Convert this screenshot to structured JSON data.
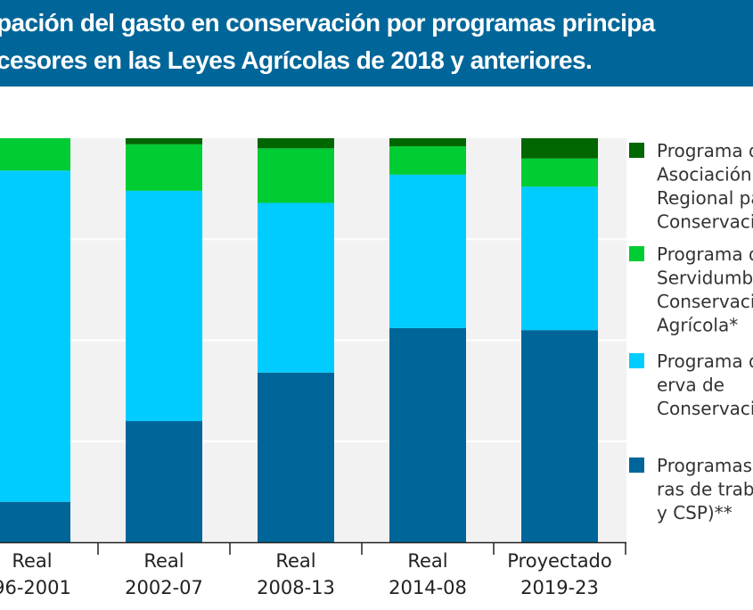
{
  "chart_data": {
    "type": "bar",
    "stacked": true,
    "title_lines": [
      "pación del gasto en conservación por programas principa",
      "cesores en las Leyes Agrícolas de 2018 y anteriores."
    ],
    "categories": [
      [
        "Real",
        "96-2001"
      ],
      [
        "Real",
        "2002-07"
      ],
      [
        "Real",
        "2008-13"
      ],
      [
        "Real",
        "2014-08"
      ],
      [
        "Proyectado",
        "2019-23"
      ]
    ],
    "ylim": [
      0,
      100
    ],
    "grid": true,
    "legend_position": "right",
    "series": [
      {
        "name": [
          "Programas",
          "ras de traba",
          "y CSP)**"
        ],
        "color": "#006699",
        "values": [
          10,
          30,
          42,
          53,
          52.5
        ]
      },
      {
        "name": [
          "Programa d",
          "erva de",
          "Conservaci"
        ],
        "color": "#00ccff",
        "values": [
          82,
          57,
          42,
          38,
          35.5
        ]
      },
      {
        "name": [
          "Programa d",
          "Servidumb",
          "Conservaci",
          "Agrícola*"
        ],
        "color": "#00cc33",
        "values": [
          8,
          11.5,
          13.5,
          7,
          7
        ]
      },
      {
        "name": [
          "Programa d",
          "Asociación",
          "Regional pa",
          "Conservaci"
        ],
        "color": "#006600",
        "values": [
          0,
          1.5,
          2.5,
          2,
          5
        ]
      }
    ],
    "colors": {
      "header": "#006699",
      "plot_background": "#f2f2f2",
      "grid": "#ffffff"
    }
  }
}
